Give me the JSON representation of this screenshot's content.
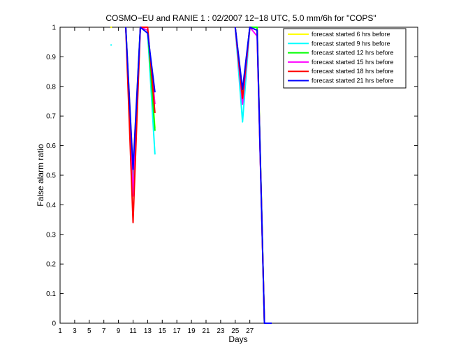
{
  "chart_data": {
    "type": "line",
    "title": "COSMO−EU and RANIE 1 : 02/2007 12−18 UTC, 5.0 mm/6h for \"COPS\"",
    "xlabel": "Days",
    "ylabel": "False alarm ratio",
    "xlim": [
      1,
      50
    ],
    "ylim": [
      0,
      1
    ],
    "xticks": [
      1,
      3,
      5,
      7,
      9,
      11,
      13,
      15,
      17,
      19,
      21,
      23,
      25,
      27
    ],
    "yticks": [
      0,
      0.1,
      0.2,
      0.3,
      0.4,
      0.5,
      0.6,
      0.7,
      0.8,
      0.9,
      1
    ],
    "ytick_labels": [
      "0",
      "0.1",
      "0.2",
      "0.3",
      "0.4",
      "0.5",
      "0.6",
      "0.7",
      "0.8",
      "0.9",
      "1"
    ],
    "grid": false,
    "legend_position": "top-right",
    "series": [
      {
        "name": "forecast started 6 hrs before",
        "color": "#ffff00",
        "points": [
          [
            8,
            1.0
          ],
          null,
          [
            10,
            1.0
          ],
          [
            11,
            0.52
          ],
          [
            12,
            1.0
          ],
          [
            13,
            0.99
          ],
          [
            14,
            0.66
          ],
          null,
          [
            25,
            1.0
          ],
          [
            26,
            0.78
          ],
          [
            27,
            1.0
          ],
          [
            28,
            1.0
          ],
          [
            29,
            0.0
          ],
          [
            30,
            0.0
          ]
        ]
      },
      {
        "name": "forecast started 9 hrs before",
        "color": "#00ffff",
        "points": [
          [
            8,
            0.94
          ],
          null,
          [
            10,
            1.0
          ],
          [
            11,
            0.5
          ],
          [
            12,
            1.0
          ],
          [
            13,
            0.98
          ],
          [
            14,
            0.57
          ],
          null,
          [
            25,
            1.0
          ],
          [
            26,
            0.68
          ],
          [
            27,
            1.0
          ],
          [
            28,
            0.99
          ],
          [
            29,
            0.0
          ],
          [
            30,
            0.0
          ]
        ]
      },
      {
        "name": "forecast started 12 hrs before",
        "color": "#00ff00",
        "points": [
          [
            10,
            1.0
          ],
          [
            11,
            0.49
          ],
          [
            12,
            1.0
          ],
          [
            13,
            0.99
          ],
          [
            14,
            0.65
          ],
          null,
          [
            25,
            1.0
          ],
          [
            26,
            0.77
          ],
          [
            27,
            1.0
          ],
          [
            28,
            1.0
          ],
          [
            29,
            0.0
          ],
          [
            30,
            0.0
          ]
        ]
      },
      {
        "name": "forecast started 15 hrs before",
        "color": "#ff00ff",
        "points": [
          [
            10,
            1.0
          ],
          [
            11,
            0.43
          ],
          [
            12,
            1.0
          ],
          [
            13,
            0.99
          ],
          [
            14,
            0.74
          ],
          null,
          [
            25,
            1.0
          ],
          [
            26,
            0.74
          ],
          [
            27,
            1.0
          ],
          [
            28,
            0.97
          ],
          [
            29,
            0.0
          ],
          [
            30,
            0.0
          ]
        ]
      },
      {
        "name": "forecast started 18 hrs before",
        "color": "#ff0000",
        "points": [
          [
            10,
            1.0
          ],
          [
            11,
            0.34
          ],
          [
            12,
            1.0
          ],
          [
            13,
            1.0
          ],
          [
            14,
            0.71
          ],
          null,
          [
            25,
            1.0
          ],
          [
            26,
            0.76
          ],
          [
            27,
            1.0
          ],
          [
            28,
            0.99
          ],
          [
            29,
            0.0
          ],
          [
            30,
            0.0
          ]
        ]
      },
      {
        "name": "forecast started 21 hrs before",
        "color": "#0000ff",
        "points": [
          [
            10,
            1.0
          ],
          [
            11,
            0.52
          ],
          [
            12,
            1.0
          ],
          [
            13,
            0.98
          ],
          [
            14,
            0.78
          ],
          null,
          [
            25,
            1.0
          ],
          [
            26,
            0.79
          ],
          [
            27,
            1.0
          ],
          [
            28,
            0.99
          ],
          [
            29,
            0.0
          ],
          [
            30,
            0.0
          ]
        ]
      }
    ]
  }
}
